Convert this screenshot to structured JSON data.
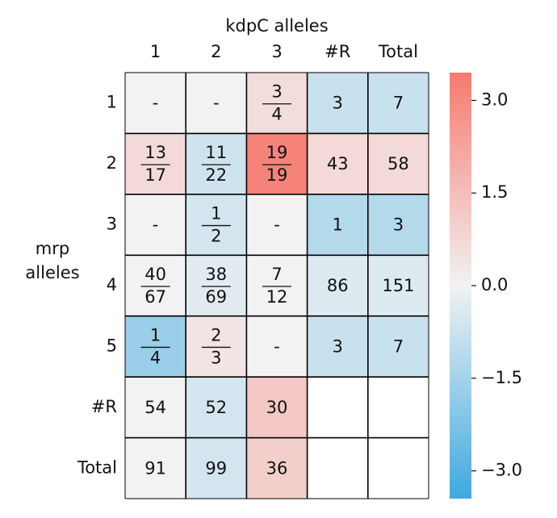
{
  "chart_data": {
    "type": "heatmap",
    "xlabel": "kdpC alleles",
    "ylabel_lines": [
      "mrp",
      "alleles"
    ],
    "columns": [
      "1",
      "2",
      "3",
      "#R",
      "Total"
    ],
    "rows": [
      "1",
      "2",
      "3",
      "4",
      "5",
      "#R",
      "Total"
    ],
    "labels": [
      [
        "-",
        "-",
        [
          "3",
          "4"
        ],
        3,
        7
      ],
      [
        [
          "13",
          "17"
        ],
        [
          "11",
          "22"
        ],
        [
          "19",
          "19"
        ],
        43,
        58
      ],
      [
        "-",
        [
          "1",
          "2"
        ],
        "-",
        1,
        3
      ],
      [
        [
          "40",
          "67"
        ],
        [
          "38",
          "69"
        ],
        [
          "7",
          "12"
        ],
        86,
        151
      ],
      [
        [
          "1",
          "4"
        ],
        [
          "2",
          "3"
        ],
        "-",
        3,
        7
      ],
      [
        54,
        52,
        30,
        null,
        null
      ],
      [
        91,
        99,
        36,
        null,
        null
      ]
    ],
    "values": [
      [
        0,
        0,
        0.6,
        -0.8,
        -0.8
      ],
      [
        0.7,
        -0.7,
        3.2,
        0.7,
        0.7
      ],
      [
        0,
        -0.6,
        0,
        -1.2,
        -1.2
      ],
      [
        0,
        -0.3,
        0,
        -0.4,
        -0.4
      ],
      [
        -1.7,
        0.4,
        0,
        -0.8,
        -0.8
      ],
      [
        0,
        -0.6,
        1.2,
        null,
        null
      ],
      [
        0,
        -0.6,
        1.0,
        null,
        null
      ]
    ],
    "cmap": [
      "#3fa9df",
      "#f2f2f2",
      "#f57a70"
    ],
    "clim": [
      -3.45,
      3.45
    ],
    "cticks": [
      {
        "value": 3,
        "label": "3.0"
      },
      {
        "value": 1.5,
        "label": "1.5"
      },
      {
        "value": 0,
        "label": "0.0"
      },
      {
        "value": -1.5,
        "label": "−1.5"
      },
      {
        "value": -3,
        "label": "−3.0"
      }
    ]
  }
}
